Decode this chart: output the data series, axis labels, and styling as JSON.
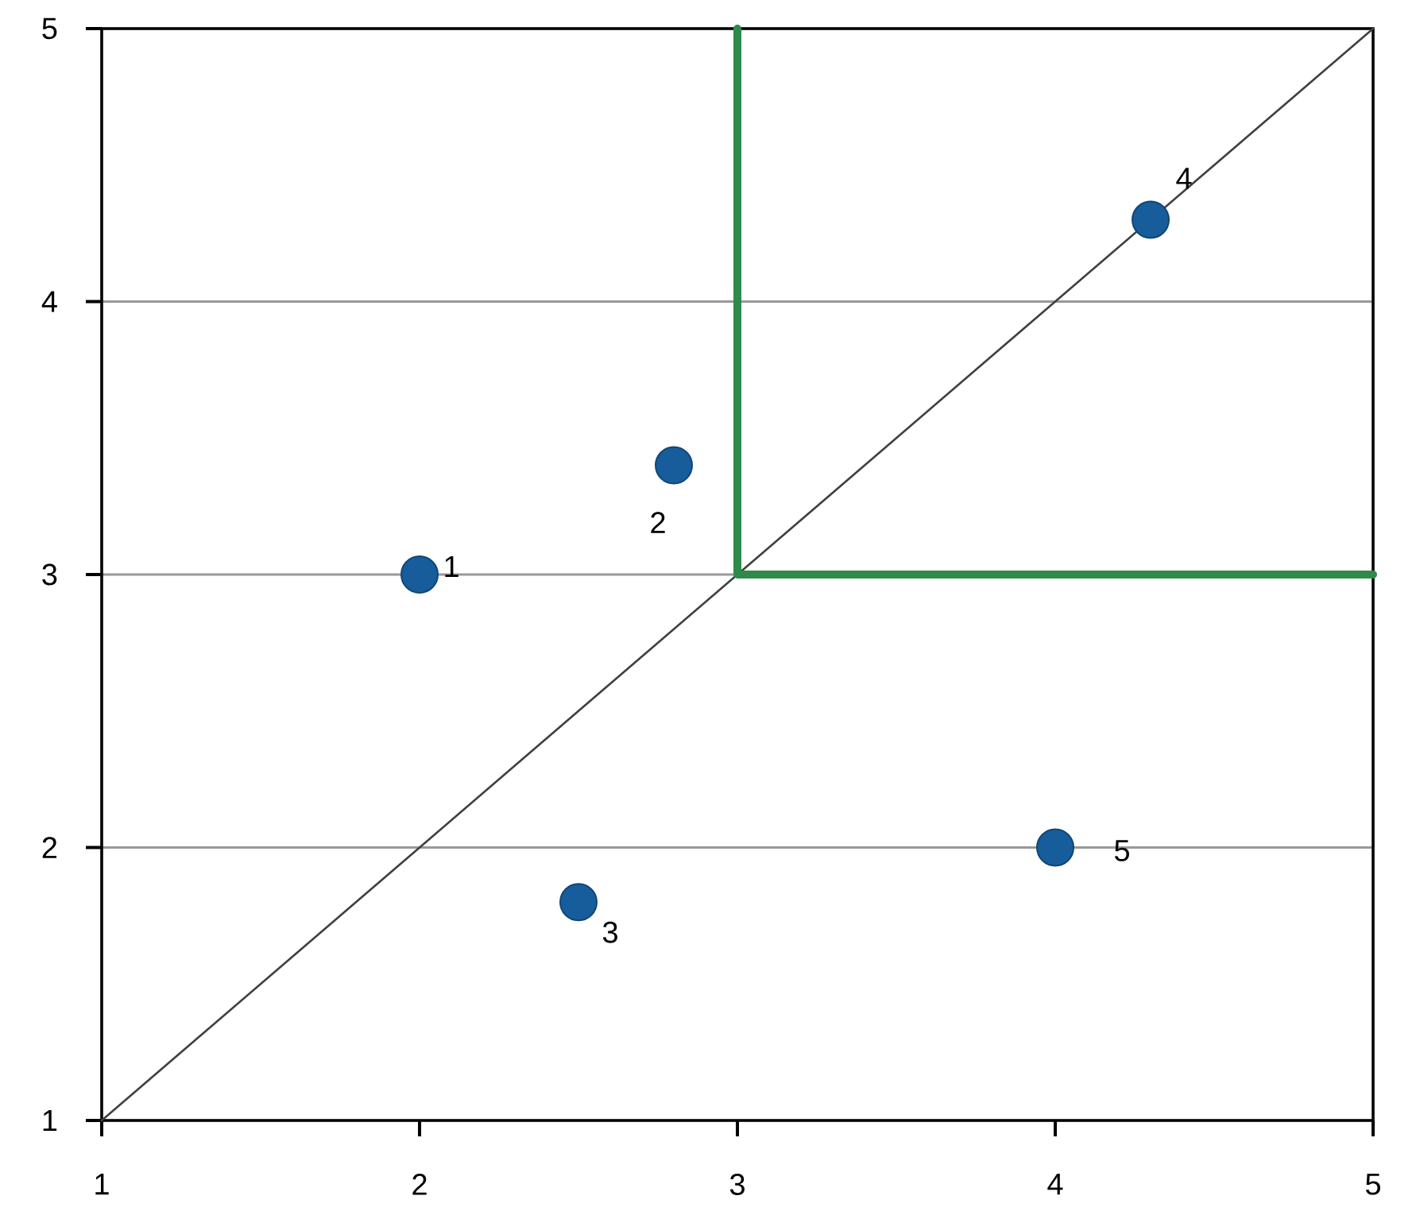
{
  "chart_data": {
    "type": "scatter",
    "xlim": [
      1,
      5
    ],
    "ylim": [
      1,
      5
    ],
    "xticks": [
      1,
      2,
      3,
      4,
      5
    ],
    "yticks": [
      1,
      2,
      3,
      4,
      5
    ],
    "grid": "y",
    "marker": "circle",
    "series": [
      {
        "type": "line",
        "color": "#404040",
        "marker": "none",
        "x": [
          1,
          5
        ],
        "values": [
          1,
          5
        ]
      },
      {
        "type": "line",
        "color": "#2e8b4a",
        "marker": "none",
        "x": [
          3,
          3,
          5
        ],
        "values": [
          5,
          3,
          3
        ]
      },
      {
        "color": "#175d9c",
        "x": [
          2,
          2.8,
          2.5,
          4.3,
          4
        ],
        "values": [
          3,
          3.4,
          1.8,
          4.3,
          2
        ]
      }
    ],
    "annotations": [
      {
        "text": "1",
        "x": 2,
        "y": 3
      },
      {
        "text": "2",
        "x": 2.8,
        "y": 3.4
      },
      {
        "text": "3",
        "x": 2.5,
        "y": 1.8
      },
      {
        "text": "4",
        "x": 4.3,
        "y": 4.3
      },
      {
        "text": "5",
        "x": 4,
        "y": 2
      }
    ]
  }
}
